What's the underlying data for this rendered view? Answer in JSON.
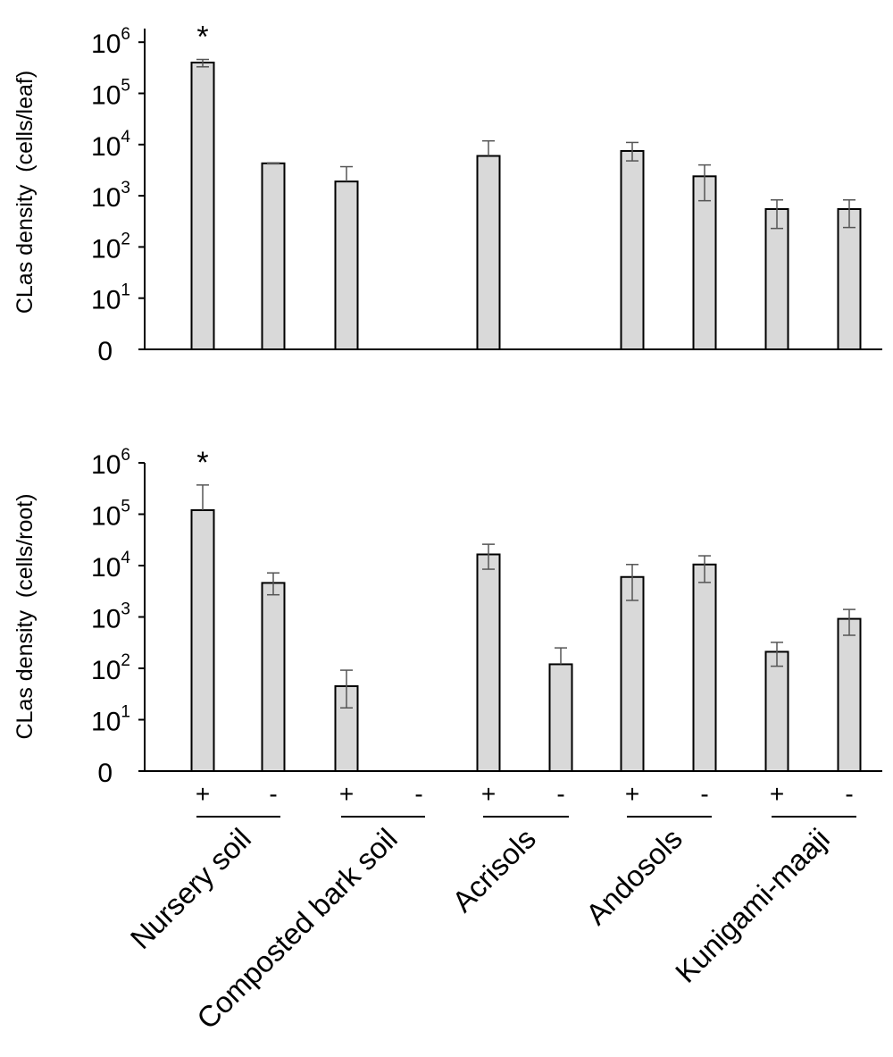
{
  "chart_data": [
    {
      "type": "bar",
      "panel": "top",
      "ylabel": "CLas density  (cells/leaf)",
      "yscale": "log",
      "yticks": [
        {
          "base": "0",
          "exp": ""
        },
        {
          "base": "10",
          "exp": "1"
        },
        {
          "base": "10",
          "exp": "2"
        },
        {
          "base": "10",
          "exp": "3"
        },
        {
          "base": "10",
          "exp": "4"
        },
        {
          "base": "10",
          "exp": "5"
        },
        {
          "base": "10",
          "exp": "6"
        }
      ],
      "ylim": [
        0,
        1000000
      ],
      "categories": [
        "Nursery soil +",
        "Nursery soil -",
        "Composted bark soil +",
        "Composted bark soil -",
        "Acrisols +",
        "Acrisols -",
        "Andosols +",
        "Andosols -",
        "Kunigami-maaji +",
        "Kunigami-maaji -"
      ],
      "values": [
        400000,
        4300,
        1900,
        0,
        6000,
        0,
        7500,
        2400,
        550,
        550
      ],
      "err_low": [
        330000,
        4200,
        0,
        0,
        0,
        0,
        4800,
        800,
        230,
        240
      ],
      "err_high": [
        460000,
        4400,
        3700,
        0,
        11800,
        0,
        11000,
        4000,
        830,
        830
      ],
      "annotations": [
        {
          "category": "Nursery soil +",
          "text": "*"
        }
      ]
    },
    {
      "type": "bar",
      "panel": "bottom",
      "ylabel": "CLas density  (cells/root)",
      "yscale": "log",
      "yticks": [
        {
          "base": "0",
          "exp": ""
        },
        {
          "base": "10",
          "exp": "1"
        },
        {
          "base": "10",
          "exp": "2"
        },
        {
          "base": "10",
          "exp": "3"
        },
        {
          "base": "10",
          "exp": "4"
        },
        {
          "base": "10",
          "exp": "5"
        },
        {
          "base": "10",
          "exp": "6"
        }
      ],
      "ylim": [
        0,
        1000000
      ],
      "categories": [
        "Nursery soil +",
        "Nursery soil -",
        "Composted bark soil +",
        "Composted bark soil -",
        "Acrisols +",
        "Acrisols -",
        "Andosols +",
        "Andosols -",
        "Kunigami-maaji +",
        "Kunigami-maaji -"
      ],
      "values": [
        120000,
        4600,
        45,
        0,
        16500,
        120,
        6000,
        10500,
        210,
        920
      ],
      "err_low": [
        0,
        2700,
        17,
        0,
        8500,
        0,
        2100,
        4700,
        110,
        440
      ],
      "err_high": [
        370000,
        7200,
        92,
        0,
        26000,
        250,
        10500,
        15500,
        320,
        1400
      ],
      "annotations": [
        {
          "category": "Nursery soil +",
          "text": "*"
        }
      ]
    }
  ],
  "x_axis": {
    "signs": [
      "+",
      "-",
      "+",
      "-",
      "+",
      "-",
      "+",
      "-",
      "+",
      "-"
    ],
    "groups": [
      "Nursery soil",
      "Composted bark soil",
      "Acrisols",
      "Andosols",
      "Kunigami-maaji"
    ]
  },
  "colors": {
    "bar_fill": "#d9d9d9",
    "bar_stroke": "#000000",
    "error_bar": "#555555"
  }
}
